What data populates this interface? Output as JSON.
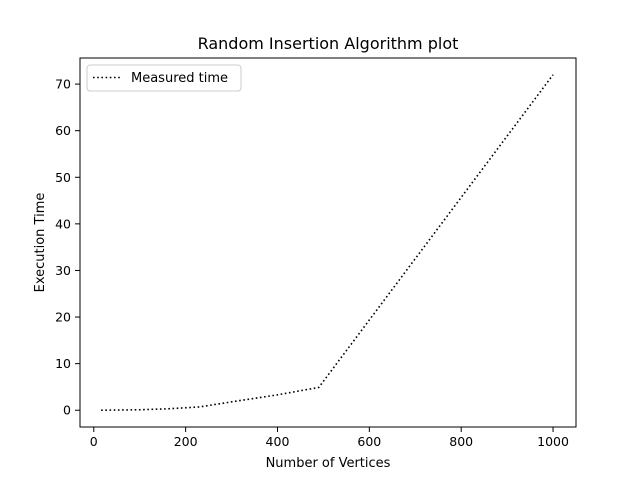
{
  "chart_data": {
    "type": "line",
    "title": "Random Insertion Algorithm plot",
    "xlabel": "Number of Vertices",
    "ylabel": "Execution Time",
    "xlim": [
      -30,
      1050
    ],
    "ylim": [
      -3.6,
      75.6
    ],
    "xticks": [
      0,
      200,
      400,
      600,
      800,
      1000
    ],
    "yticks": [
      0,
      10,
      20,
      30,
      40,
      50,
      60,
      70
    ],
    "grid": false,
    "legend_position": "upper-left",
    "series": [
      {
        "name": "Measured time",
        "line_style": "dotted",
        "color": "#000000",
        "x": [
          16,
          100,
          160,
          230,
          300,
          400,
          490,
          1000
        ],
        "y": [
          0,
          0.1,
          0.3,
          0.7,
          1.8,
          3.3,
          4.9,
          72
        ]
      }
    ]
  }
}
